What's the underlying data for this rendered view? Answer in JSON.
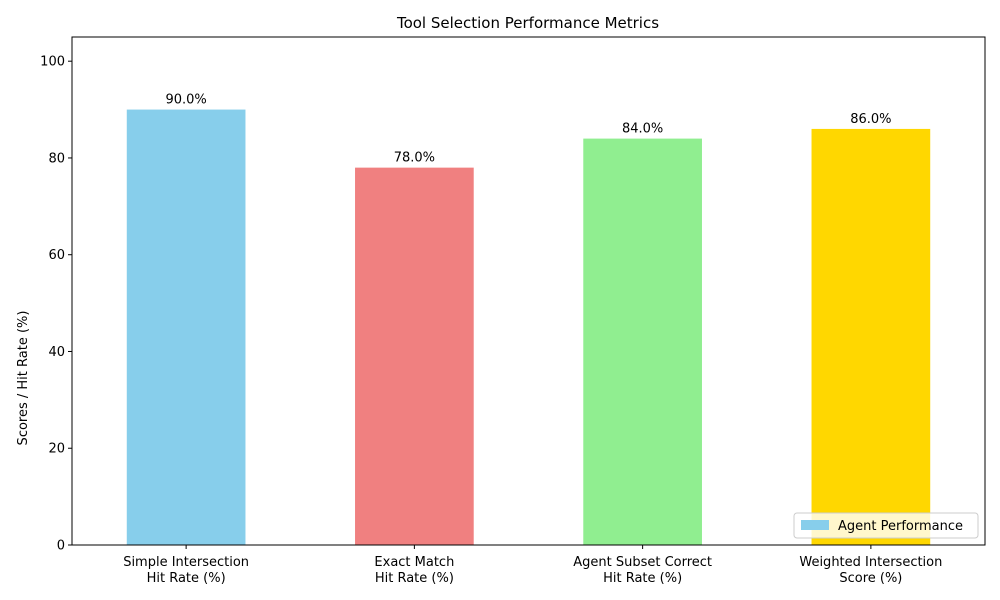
{
  "chart_data": {
    "type": "bar",
    "title": "Tool Selection Performance Metrics",
    "xlabel": "",
    "ylabel": "Scores / Hit Rate (%)",
    "ylim": [
      0,
      105
    ],
    "yticks": [
      0,
      20,
      40,
      60,
      80,
      100
    ],
    "categories": [
      [
        "Simple Intersection",
        "Hit Rate (%)"
      ],
      [
        "Exact Match",
        "Hit Rate (%)"
      ],
      [
        "Agent Subset Correct",
        "Hit Rate (%)"
      ],
      [
        "Weighted Intersection",
        "Score (%)"
      ]
    ],
    "values": [
      90.0,
      78.0,
      84.0,
      86.0
    ],
    "data_labels": [
      "90.0%",
      "78.0%",
      "84.0%",
      "86.0%"
    ],
    "colors": [
      "#87CEEB",
      "#F08080",
      "#90EE90",
      "#FFD700"
    ],
    "series": [
      {
        "name": "Agent Performance",
        "values": [
          90.0,
          78.0,
          84.0,
          86.0
        ]
      }
    ],
    "legend": {
      "position": "lower-right",
      "entries": [
        {
          "label": "Agent Performance",
          "color": "#87CEEB"
        }
      ]
    },
    "grid": false
  }
}
